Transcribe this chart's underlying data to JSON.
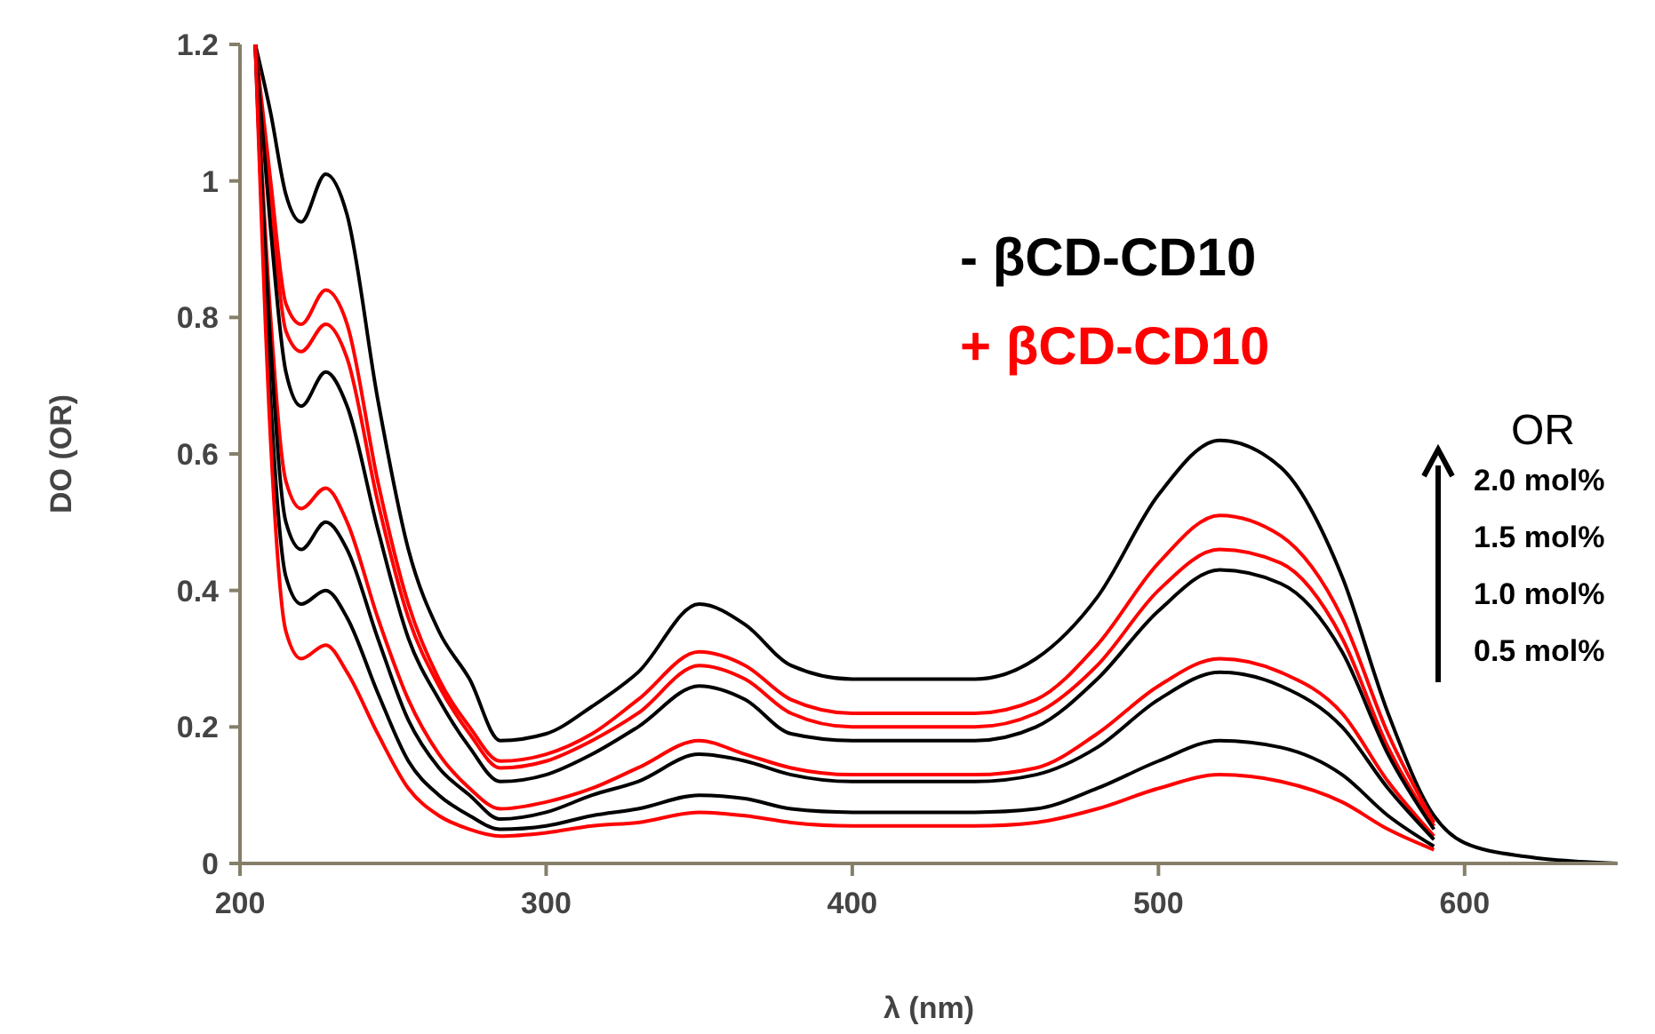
{
  "chart_data": {
    "type": "line",
    "xlabel": "λ (nm)",
    "ylabel": "DO (OR)",
    "xlim": [
      200,
      650
    ],
    "xticks": [
      200,
      300,
      400,
      500,
      600
    ],
    "ylim": [
      0,
      1.2
    ],
    "yticks": [
      0,
      0.2,
      0.4,
      0.6,
      0.8,
      1,
      1.2
    ],
    "grid": false,
    "legend": "top right",
    "marker": "none",
    "line_style": "solid",
    "x": [
      205,
      210,
      215,
      220,
      228,
      235,
      245,
      255,
      265,
      275,
      285,
      300,
      315,
      330,
      350,
      365,
      380,
      400,
      420,
      440,
      460,
      480,
      500,
      520,
      540,
      560,
      575,
      590,
      600,
      620,
      650
    ],
    "series": [
      {
        "name": "- βCD-CD10",
        "color": "#000000",
        "values": [
          1.2,
          1.1,
          0.98,
          0.94,
          1.01,
          0.95,
          0.68,
          0.46,
          0.34,
          0.27,
          0.18,
          0.19,
          0.23,
          0.28,
          0.38,
          0.35,
          0.29,
          0.27,
          0.27,
          0.27,
          0.3,
          0.39,
          0.54,
          0.62,
          0.58,
          0.42,
          0.22,
          0.07,
          0.03,
          0.01,
          0
        ]
      },
      {
        "name": "+ βCD-CD10",
        "color": "#ff0000",
        "values": [
          1.2,
          1.0,
          0.82,
          0.79,
          0.84,
          0.79,
          0.56,
          0.38,
          0.27,
          0.2,
          0.15,
          0.16,
          0.19,
          0.24,
          0.31,
          0.29,
          0.24,
          0.22,
          0.22,
          0.22,
          0.24,
          0.32,
          0.44,
          0.51,
          0.48,
          0.36,
          0.19,
          0.06,
          null,
          null,
          null
        ]
      },
      {
        "color": "#ff0000",
        "values": [
          1.2,
          0.97,
          0.78,
          0.75,
          0.79,
          0.74,
          0.53,
          0.36,
          0.26,
          0.19,
          0.14,
          0.15,
          0.18,
          0.22,
          0.29,
          0.27,
          0.22,
          0.2,
          0.2,
          0.2,
          0.22,
          0.29,
          0.4,
          0.46,
          0.44,
          0.33,
          0.17,
          0.055,
          null,
          null,
          null
        ]
      },
      {
        "color": "#000000",
        "values": [
          1.2,
          0.93,
          0.72,
          0.67,
          0.72,
          0.67,
          0.49,
          0.33,
          0.24,
          0.17,
          0.12,
          0.13,
          0.16,
          0.2,
          0.26,
          0.24,
          0.19,
          0.18,
          0.18,
          0.18,
          0.2,
          0.27,
          0.37,
          0.43,
          0.41,
          0.31,
          0.16,
          0.05,
          null,
          null,
          null
        ]
      },
      {
        "color": "#ff0000",
        "values": [
          1.2,
          0.8,
          0.56,
          0.52,
          0.55,
          0.5,
          0.36,
          0.24,
          0.16,
          0.11,
          0.08,
          0.09,
          0.11,
          0.14,
          0.18,
          0.16,
          0.14,
          0.13,
          0.13,
          0.13,
          0.14,
          0.19,
          0.26,
          0.3,
          0.28,
          0.22,
          0.12,
          0.04,
          null,
          null,
          null
        ]
      },
      {
        "color": "#000000",
        "values": [
          1.2,
          0.76,
          0.5,
          0.46,
          0.5,
          0.46,
          0.33,
          0.21,
          0.14,
          0.1,
          0.065,
          0.075,
          0.1,
          0.12,
          0.16,
          0.15,
          0.13,
          0.12,
          0.12,
          0.12,
          0.13,
          0.17,
          0.24,
          0.28,
          0.26,
          0.2,
          0.11,
          0.035,
          null,
          null,
          null
        ]
      },
      {
        "color": "#000000",
        "values": [
          1.2,
          0.68,
          0.42,
          0.38,
          0.4,
          0.36,
          0.25,
          0.15,
          0.1,
          0.07,
          0.05,
          0.055,
          0.07,
          0.08,
          0.1,
          0.095,
          0.08,
          0.075,
          0.075,
          0.075,
          0.08,
          0.11,
          0.15,
          0.18,
          0.17,
          0.13,
          0.07,
          0.025,
          null,
          null,
          null
        ]
      },
      {
        "color": "#ff0000",
        "values": [
          1.2,
          0.62,
          0.34,
          0.3,
          0.32,
          0.28,
          0.19,
          0.11,
          0.07,
          0.05,
          0.04,
          0.045,
          0.055,
          0.06,
          0.075,
          0.07,
          0.06,
          0.055,
          0.055,
          0.055,
          0.06,
          0.08,
          0.11,
          0.13,
          0.12,
          0.09,
          0.05,
          0.02,
          null,
          null,
          null
        ]
      }
    ],
    "annotations": [
      "OR",
      "2.0 mol%",
      "1.5 mol%",
      "1.0 mol%",
      "0.5 mol%"
    ]
  }
}
